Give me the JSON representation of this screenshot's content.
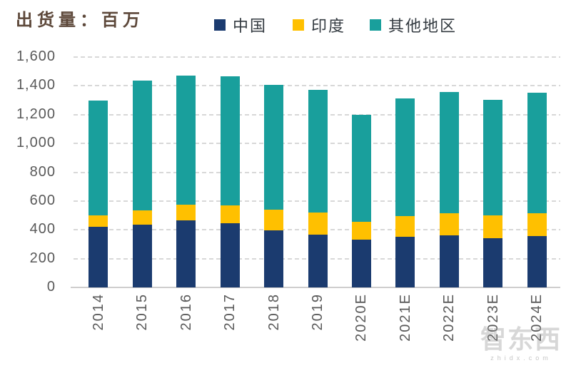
{
  "header": {
    "title": "出货量：百万",
    "legend": [
      {
        "label": "中国",
        "color": "#1B3B6F",
        "swatch_icon": "square-swatch"
      },
      {
        "label": "印度",
        "color": "#FFC000",
        "swatch_icon": "square-swatch"
      },
      {
        "label": "其他地区",
        "color": "#199F9C",
        "swatch_icon": "square-swatch"
      }
    ]
  },
  "chart_data": {
    "type": "bar",
    "stacked": true,
    "title": "出货量：百万",
    "xlabel": "",
    "ylabel": "",
    "categories": [
      "2014",
      "2015",
      "2016",
      "2017",
      "2018",
      "2019",
      "2020E",
      "2021E",
      "2022E",
      "2023E",
      "2024E"
    ],
    "series": [
      {
        "name": "中国",
        "color": "#1B3B6F",
        "values": [
          420,
          434,
          467,
          444,
          398,
          367,
          330,
          350,
          363,
          340,
          355
        ]
      },
      {
        "name": "印度",
        "color": "#FFC000",
        "values": [
          80,
          103,
          109,
          124,
          142,
          152,
          125,
          145,
          150,
          158,
          160
        ]
      },
      {
        "name": "其他地区",
        "color": "#199F9C",
        "values": [
          800,
          900,
          894,
          897,
          865,
          851,
          745,
          820,
          842,
          807,
          835
        ]
      }
    ],
    "stack_totals": [
      1300,
      1437,
      1470,
      1465,
      1405,
      1370,
      1200,
      1315,
      1355,
      1305,
      1350
    ],
    "ylim": [
      0,
      1600
    ],
    "y_tick_step": 200,
    "y_ticks": [
      "0",
      "200",
      "400",
      "600",
      "800",
      "1,000",
      "1,200",
      "1,400",
      "1,600"
    ],
    "grid": "horizontal-dashed",
    "legend_position": "top",
    "x_tick_rotation_deg": -90
  },
  "colors": {
    "gridline": "#d8d8d8",
    "axis_line": "#cfcdcd",
    "axis_text": "#595959",
    "title_text": "#5d483a"
  },
  "watermark": {
    "brand": "智东西",
    "domain": "zhidx.com"
  }
}
